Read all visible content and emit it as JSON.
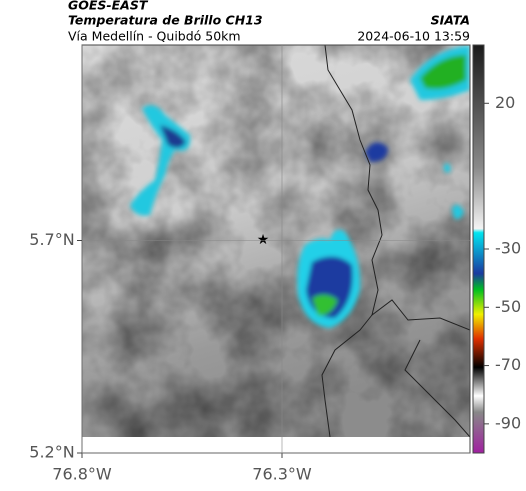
{
  "header": {
    "satellite": "GOES-EAST",
    "product": "Temperatura de Brillo CH13",
    "source": "SIATA",
    "route": "Vía Medellín - Quibdó 50km",
    "timestamp": "2024-06-10 13:59"
  },
  "map": {
    "xlim": [
      -76.8,
      -75.83
    ],
    "ylim": [
      5.2,
      6.16
    ],
    "xticks": [
      {
        "value": -76.8,
        "label": "76.8°W"
      },
      {
        "value": -76.3,
        "label": "76.3°W"
      }
    ],
    "yticks": [
      {
        "value": 5.7,
        "label": "5.7°N"
      },
      {
        "value": 5.2,
        "label": "5.2°N"
      }
    ],
    "grid": true,
    "colorbar": {
      "lim": [
        -100,
        40
      ],
      "ticks": [
        20,
        -30,
        -50,
        -70,
        -90
      ]
    }
  }
}
